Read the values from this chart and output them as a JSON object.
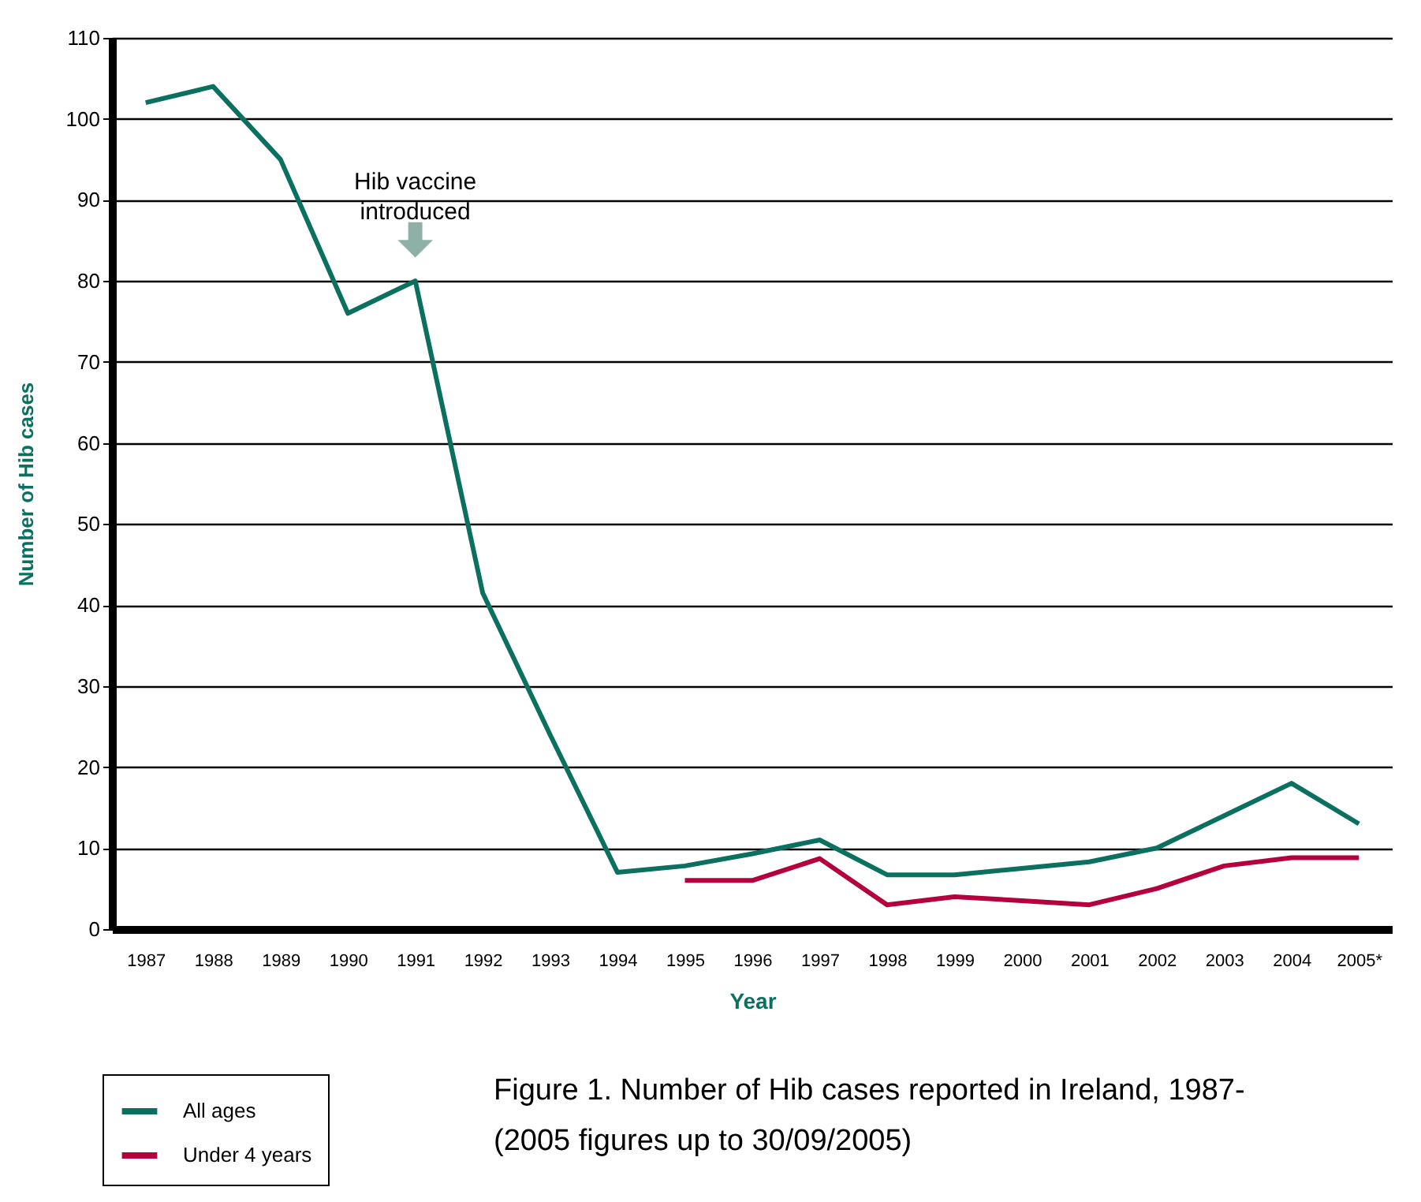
{
  "chart_data": {
    "type": "line",
    "xlabel": "Year",
    "ylabel": "Number of Hib cases",
    "categories": [
      "1987",
      "1988",
      "1989",
      "1990",
      "1991",
      "1992",
      "1993",
      "1994",
      "1995",
      "1996",
      "1997",
      "1998",
      "1999",
      "2000",
      "2001",
      "2002",
      "2003",
      "2004",
      "2005*"
    ],
    "series": [
      {
        "name": "All ages",
        "color": "#0b7060",
        "values": [
          102,
          104,
          95,
          76,
          80,
          41.5,
          24,
          7,
          7.8,
          9.3,
          11,
          6.7,
          6.7,
          7.5,
          8.3,
          10,
          14,
          18,
          13
        ]
      },
      {
        "name": "Under 4 years",
        "color": "#b5003c",
        "values": [
          null,
          null,
          null,
          null,
          null,
          null,
          null,
          null,
          6,
          6,
          8.7,
          3,
          4,
          3.5,
          3,
          5,
          7.8,
          8.8,
          8.8
        ]
      }
    ],
    "ylim": [
      0,
      110
    ],
    "yticks": [
      0,
      10,
      20,
      30,
      40,
      50,
      60,
      70,
      80,
      90,
      100,
      110
    ],
    "grid": "y",
    "legend": "bottom left",
    "marker": "none",
    "line_style": "solid",
    "annotations": [
      {
        "text": "Hib vaccine\nintroduced",
        "x": "1991",
        "y": 80
      },
      "Figure 1.  Number of Hib cases reported in Ireland, 1987-",
      "(2005 figures up to 30/09/2005)"
    ]
  }
}
